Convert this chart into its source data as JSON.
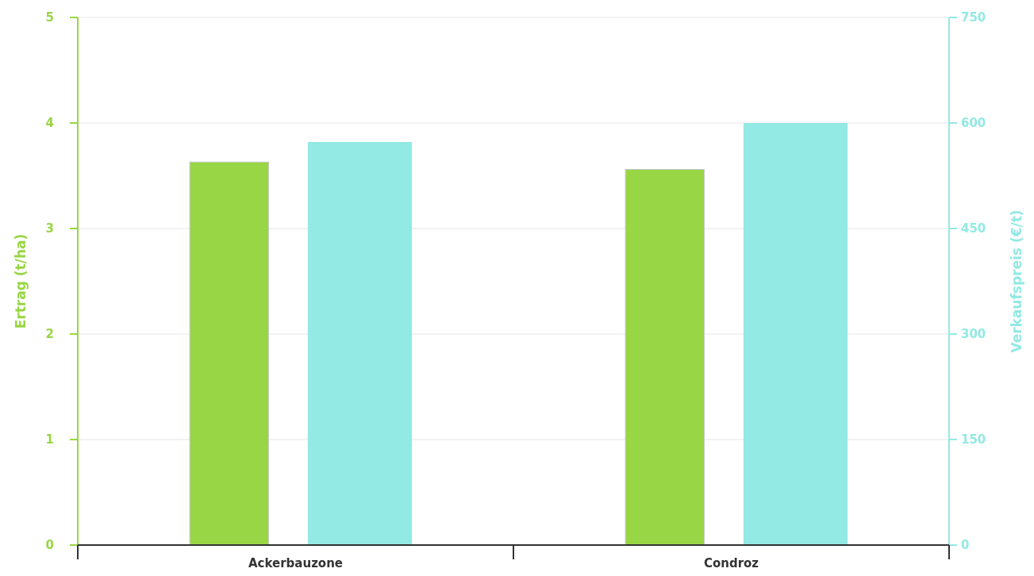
{
  "chart_data": {
    "type": "bar",
    "categories": [
      "Ackerbauzone",
      "Condroz"
    ],
    "series": [
      {
        "color": "#99d645",
        "values": [
          3.63,
          3.56
        ]
      },
      {
        "color": "#93e9e3",
        "values": [
          573,
          600
        ],
        "axis": "y2"
      }
    ],
    "ylabel": "Ertrag (t/ha)",
    "y2label": "Verkaufspreis (€/t)",
    "ylim": [
      0,
      5
    ],
    "yticks": [
      0,
      1,
      2,
      3,
      4,
      5
    ],
    "y2lim": [
      0,
      750
    ],
    "y2ticks": [
      0,
      150,
      300,
      450,
      600,
      750
    ],
    "grid": "y"
  }
}
